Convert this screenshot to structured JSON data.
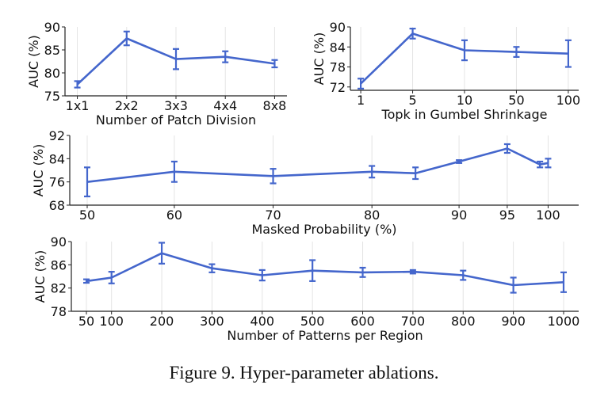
{
  "caption": "Figure 9. Hyper-parameter ablations.",
  "colors": {
    "line": "#4466cc",
    "axis": "#222222",
    "grid": "#e4e4e4"
  },
  "chart_data": [
    {
      "type": "line",
      "xlabel": "Number of Patch Division",
      "ylabel": "AUC (%)",
      "categories": [
        "1x1",
        "2x2",
        "3x3",
        "4x4",
        "8x8"
      ],
      "x": [
        0,
        1,
        2,
        3,
        4
      ],
      "xlim": [
        -0.25,
        4.25
      ],
      "values": [
        77.5,
        87.5,
        83.0,
        83.5,
        82.0
      ],
      "err": [
        0.7,
        1.5,
        2.2,
        1.2,
        0.8
      ],
      "ylim": [
        75,
        90
      ],
      "yticks": [
        75,
        80,
        85,
        90
      ],
      "grid": "vertical"
    },
    {
      "type": "line",
      "xlabel": "Topk in Gumbel Shrinkage",
      "ylabel": "AUC (%)",
      "categories": [
        "1",
        "5",
        "10",
        "50",
        "100"
      ],
      "x": [
        0,
        1,
        2,
        3,
        4
      ],
      "xlim": [
        -0.2,
        4.2
      ],
      "values": [
        73.0,
        88.0,
        83.0,
        82.5,
        82.0
      ],
      "err": [
        1.5,
        1.5,
        3.0,
        1.5,
        4.0
      ],
      "ylim": [
        71,
        90
      ],
      "yticks": [
        72,
        78,
        84,
        90
      ],
      "grid": "vertical"
    },
    {
      "type": "line",
      "xlabel": "Masked Probability (%)",
      "ylabel": "AUC (%)",
      "categories": [
        "50",
        "60",
        "70",
        "80",
        "90",
        "95",
        "100"
      ],
      "x": [
        50,
        60,
        70,
        80,
        85,
        90,
        95,
        99,
        100
      ],
      "xticks": [
        50,
        60,
        70,
        80,
        90,
        95,
        100
      ],
      "tick_x": [
        50,
        60,
        70,
        80,
        90,
        95,
        100
      ],
      "xlim": [
        49,
        102
      ],
      "xscale": "piecewise",
      "values": [
        76.0,
        79.5,
        78.0,
        79.5,
        79.0,
        83.0,
        87.5,
        82.0,
        82.5
      ],
      "err": [
        5.0,
        3.5,
        2.5,
        2.0,
        2.0,
        0.5,
        1.5,
        1.0,
        1.5
      ],
      "ylim": [
        68,
        92
      ],
      "yticks": [
        68,
        76,
        84,
        92
      ],
      "grid": "vertical"
    },
    {
      "type": "line",
      "xlabel": "Number of Patterns per Region",
      "ylabel": "AUC (%)",
      "categories": [
        "50",
        "100",
        "200",
        "300",
        "400",
        "500",
        "600",
        "700",
        "800",
        "900",
        "1000"
      ],
      "x": [
        50,
        100,
        200,
        300,
        400,
        500,
        600,
        700,
        800,
        900,
        1000
      ],
      "xlim": [
        20,
        1030
      ],
      "values": [
        83.2,
        83.8,
        88.0,
        85.4,
        84.2,
        85.0,
        84.7,
        84.8,
        84.2,
        82.5,
        83.0
      ],
      "err": [
        0.3,
        1.0,
        1.8,
        0.7,
        0.9,
        1.8,
        0.8,
        0.3,
        0.8,
        1.3,
        1.7
      ],
      "ylim": [
        78,
        90
      ],
      "yticks": [
        78,
        82,
        86,
        90
      ],
      "grid": "vertical"
    }
  ]
}
